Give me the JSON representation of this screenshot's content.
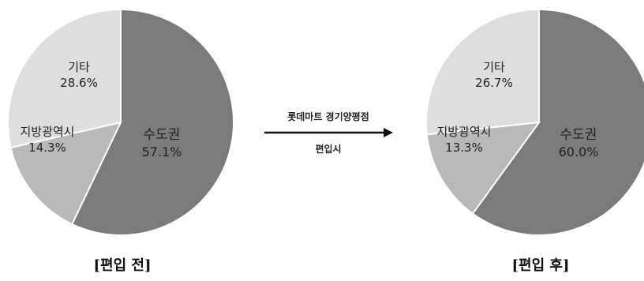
{
  "chart_data": [
    {
      "type": "pie",
      "title": "[편입 전]",
      "slices": [
        {
          "label": "수도권",
          "value": 57.1,
          "value_label": "57.1%",
          "color": "#7b7b7b"
        },
        {
          "label": "지방광역시",
          "value": 14.3,
          "value_label": "14.3%",
          "color": "#b9b9b9"
        },
        {
          "label": "기타",
          "value": 28.6,
          "value_label": "28.6%",
          "color": "#dedede"
        }
      ]
    },
    {
      "type": "pie",
      "title": "[편입 후]",
      "slices": [
        {
          "label": "수도권",
          "value": 60.0,
          "value_label": "60.0%",
          "color": "#7b7b7b"
        },
        {
          "label": "지방광역시",
          "value": 13.3,
          "value_label": "13.3%",
          "color": "#b9b9b9"
        },
        {
          "label": "기타",
          "value": 26.7,
          "value_label": "26.7%",
          "color": "#dedede"
        }
      ]
    }
  ],
  "transition": {
    "top_label": "롯데마트 경기양평점",
    "bottom_label": "편입시"
  }
}
